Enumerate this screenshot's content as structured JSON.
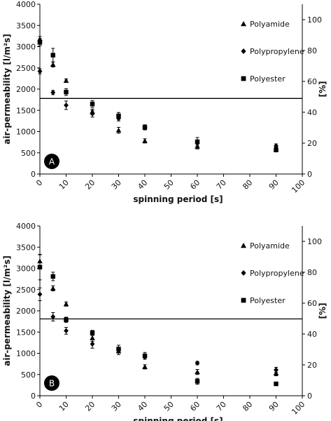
{
  "chart_data": [
    {
      "type": "scatter",
      "panel_label": "A",
      "xlabel": "spinning period [s]",
      "ylabel": "air-permeability [l/m²s]",
      "y2label": "[%]",
      "xlim": [
        0,
        100
      ],
      "ylim": [
        0,
        4000
      ],
      "y2lim": [
        0,
        110
      ],
      "xticks": [
        "0",
        "10",
        "20",
        "30",
        "40",
        "50",
        "60",
        "70",
        "80",
        "90",
        "100"
      ],
      "yticks": [
        "0",
        "500",
        "1000",
        "1500",
        "2000",
        "2500",
        "3000",
        "3500",
        "4000"
      ],
      "y2ticks": [
        "0",
        "20",
        "40",
        "60",
        "80",
        "100"
      ],
      "reference_line_y": 1780,
      "grid": false,
      "legend_position": "right",
      "series": [
        {
          "name": "Polyamide",
          "marker": "triangle",
          "points": [
            {
              "x": 0,
              "y": 3180,
              "err": 60
            },
            {
              "x": 5,
              "y": 2580,
              "err": 60
            },
            {
              "x": 10,
              "y": 2200,
              "err": 40
            },
            {
              "x": 20,
              "y": 1470,
              "err": 60
            },
            {
              "x": 30,
              "y": 1030,
              "err": 70
            },
            {
              "x": 40,
              "y": 780,
              "err": 50
            },
            {
              "x": 60,
              "y": 650,
              "err": 60
            },
            {
              "x": 90,
              "y": 580,
              "err": 50
            }
          ]
        },
        {
          "name": "Polypropylene",
          "marker": "diamond",
          "points": [
            {
              "x": 0,
              "y": 2420,
              "err": 60
            },
            {
              "x": 5,
              "y": 1920,
              "err": 50
            },
            {
              "x": 10,
              "y": 1620,
              "err": 100
            },
            {
              "x": 20,
              "y": 1420,
              "err": 80
            },
            {
              "x": 30,
              "y": 1310,
              "err": 60
            },
            {
              "x": 40,
              "y": 1090,
              "err": 40
            },
            {
              "x": 60,
              "y": 720,
              "err": 60
            },
            {
              "x": 90,
              "y": 660,
              "err": 50
            }
          ]
        },
        {
          "name": "Polyester",
          "marker": "square",
          "points": [
            {
              "x": 0,
              "y": 3100,
              "err": 80
            },
            {
              "x": 5,
              "y": 2800,
              "err": 160
            },
            {
              "x": 10,
              "y": 1930,
              "err": 80
            },
            {
              "x": 20,
              "y": 1650,
              "err": 80
            },
            {
              "x": 30,
              "y": 1370,
              "err": 80
            },
            {
              "x": 40,
              "y": 1100,
              "err": 60
            },
            {
              "x": 60,
              "y": 760,
              "err": 100
            },
            {
              "x": 90,
              "y": 570,
              "err": 50
            }
          ]
        }
      ]
    },
    {
      "type": "scatter",
      "panel_label": "B",
      "xlabel": "spinning period [s]",
      "ylabel": "air-permeability [l/m²s]",
      "y2label": "[%]",
      "xlim": [
        0,
        100
      ],
      "ylim": [
        0,
        4000
      ],
      "y2lim": [
        0,
        110
      ],
      "xticks": [
        "0",
        "10",
        "20",
        "30",
        "40",
        "50",
        "60",
        "70",
        "80",
        "90",
        "100"
      ],
      "yticks": [
        "0",
        "500",
        "1000",
        "1500",
        "2000",
        "2500",
        "3000",
        "3500",
        "4000"
      ],
      "y2ticks": [
        "0",
        "20",
        "40",
        "60",
        "80",
        "100"
      ],
      "reference_line_y": 1810,
      "grid": false,
      "legend_position": "right",
      "series": [
        {
          "name": "Polyamide",
          "marker": "triangle",
          "points": [
            {
              "x": 0,
              "y": 3170,
              "err": 150
            },
            {
              "x": 5,
              "y": 2530,
              "err": 60
            },
            {
              "x": 10,
              "y": 2160,
              "err": 50
            },
            {
              "x": 20,
              "y": 1360,
              "err": 80
            },
            {
              "x": 30,
              "y": 1050,
              "err": 80
            },
            {
              "x": 40,
              "y": 680,
              "err": 50
            },
            {
              "x": 60,
              "y": 560,
              "err": 60
            },
            {
              "x": 90,
              "y": 530,
              "err": 60
            }
          ]
        },
        {
          "name": "Polypropylene",
          "marker": "diamond",
          "points": [
            {
              "x": 0,
              "y": 2390,
              "err": 150
            },
            {
              "x": 5,
              "y": 1860,
              "err": 100
            },
            {
              "x": 10,
              "y": 1530,
              "err": 80
            },
            {
              "x": 20,
              "y": 1220,
              "err": 100
            },
            {
              "x": 30,
              "y": 1080,
              "err": 60
            },
            {
              "x": 40,
              "y": 910,
              "err": 50
            },
            {
              "x": 60,
              "y": 770,
              "err": 40
            },
            {
              "x": 90,
              "y": 610,
              "err": 60
            }
          ]
        },
        {
          "name": "Polyester",
          "marker": "square",
          "points": [
            {
              "x": 0,
              "y": 3030,
              "err": 300
            },
            {
              "x": 5,
              "y": 2810,
              "err": 100
            },
            {
              "x": 10,
              "y": 1790,
              "err": 60
            },
            {
              "x": 20,
              "y": 1480,
              "err": 60
            },
            {
              "x": 30,
              "y": 1100,
              "err": 90
            },
            {
              "x": 40,
              "y": 940,
              "err": 80
            },
            {
              "x": 60,
              "y": 340,
              "err": 70
            },
            {
              "x": 90,
              "y": 280,
              "err": 40
            }
          ]
        }
      ]
    }
  ]
}
